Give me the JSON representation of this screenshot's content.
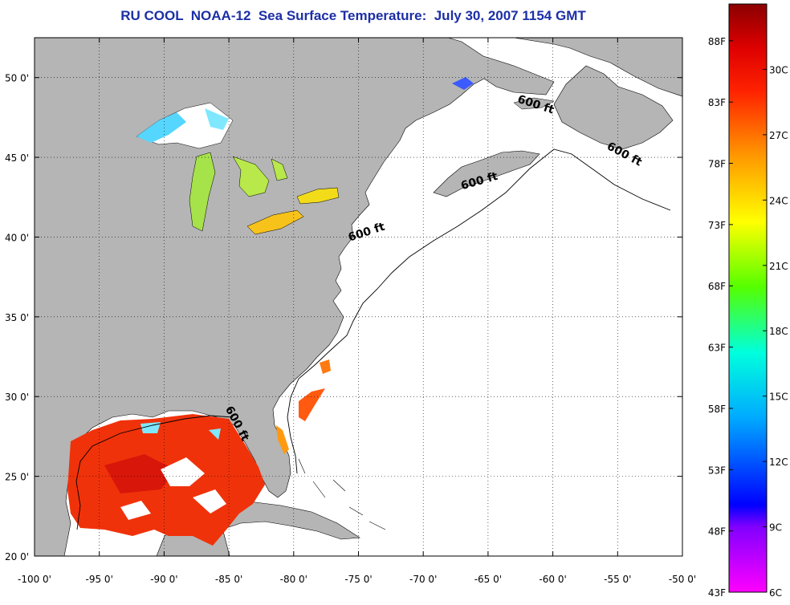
{
  "title": "RU COOL  NOAA-12  Sea Surface Temperature:  July 30, 2007 1154 GMT",
  "map": {
    "lon_range": [
      -100,
      -50
    ],
    "lat_range": [
      20,
      52.5
    ],
    "lon_ticks": [
      {
        "value": -100,
        "label": "-100 0'"
      },
      {
        "value": -95,
        "label": "-95 0'"
      },
      {
        "value": -90,
        "label": "-90 0'"
      },
      {
        "value": -85,
        "label": "-85 0'"
      },
      {
        "value": -80,
        "label": "-80 0'"
      },
      {
        "value": -75,
        "label": "-75 0'"
      },
      {
        "value": -70,
        "label": "-70 0'"
      },
      {
        "value": -65,
        "label": "-65 0'"
      },
      {
        "value": -60,
        "label": "-60 0'"
      },
      {
        "value": -55,
        "label": "-55 0'"
      },
      {
        "value": -50,
        "label": "-50 0'"
      }
    ],
    "lat_ticks": [
      {
        "value": 20,
        "label": "20 0'"
      },
      {
        "value": 25,
        "label": "25 0'"
      },
      {
        "value": 30,
        "label": "30 0'"
      },
      {
        "value": 35,
        "label": "35 0'"
      },
      {
        "value": 40,
        "label": "40 0'"
      },
      {
        "value": 45,
        "label": "45 0'"
      },
      {
        "value": 50,
        "label": "50 0'"
      }
    ],
    "grid": "dotted",
    "contour_labels": [
      {
        "text": "600 ft",
        "lon": -61.4,
        "lat": 48.1,
        "angle": 18
      },
      {
        "text": "600 ft",
        "lon": -54.6,
        "lat": 45.0,
        "angle": 28
      },
      {
        "text": "600 ft",
        "lon": -65.6,
        "lat": 43.3,
        "angle": -16
      },
      {
        "text": "600 ft",
        "lon": -74.3,
        "lat": 40.1,
        "angle": -18
      },
      {
        "text": "600 ft",
        "lon": -84.6,
        "lat": 28.2,
        "angle": 62
      }
    ],
    "colors": {
      "land": "#b5b5b5",
      "ocean_no_data": "#ffffff",
      "title": "#1c2fa6"
    }
  },
  "colorbar": {
    "range_F": [
      43,
      91
    ],
    "range_C": [
      6,
      33
    ],
    "fahrenheit_ticks": [
      {
        "value": 88,
        "label": "88F"
      },
      {
        "value": 83,
        "label": "83F"
      },
      {
        "value": 78,
        "label": "78F"
      },
      {
        "value": 73,
        "label": "73F"
      },
      {
        "value": 68,
        "label": "68F"
      },
      {
        "value": 63,
        "label": "63F"
      },
      {
        "value": 58,
        "label": "58F"
      },
      {
        "value": 53,
        "label": "53F"
      },
      {
        "value": 48,
        "label": "48F"
      },
      {
        "value": 43,
        "label": "43F"
      }
    ],
    "celsius_ticks": [
      {
        "value": 30,
        "label": "30C"
      },
      {
        "value": 27,
        "label": "27C"
      },
      {
        "value": 24,
        "label": "24C"
      },
      {
        "value": 21,
        "label": "21C"
      },
      {
        "value": 18,
        "label": "18C"
      },
      {
        "value": 15,
        "label": "15C"
      },
      {
        "value": 12,
        "label": "12C"
      },
      {
        "value": 9,
        "label": "9C"
      },
      {
        "value": 6,
        "label": "6C"
      }
    ],
    "color_stops": [
      {
        "C": 6,
        "color": "#ff00ff"
      },
      {
        "C": 9,
        "color": "#8000ff"
      },
      {
        "C": 10,
        "color": "#0000ff"
      },
      {
        "C": 14,
        "color": "#00aaff"
      },
      {
        "C": 17,
        "color": "#00ffdd"
      },
      {
        "C": 20,
        "color": "#55ff00"
      },
      {
        "C": 23,
        "color": "#ffff00"
      },
      {
        "C": 26,
        "color": "#ff9900"
      },
      {
        "C": 29,
        "color": "#ff2200"
      },
      {
        "C": 31,
        "color": "#dd0000"
      },
      {
        "C": 33,
        "color": "#8b0000"
      }
    ]
  }
}
